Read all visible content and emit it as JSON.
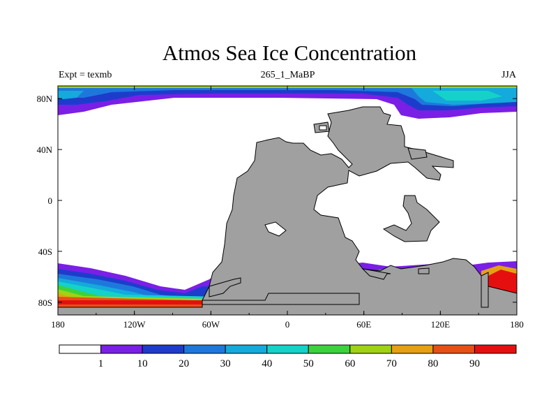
{
  "chart_data": {
    "type": "heatmap",
    "title": "Atmos Sea Ice Concentration",
    "left_string": "Expt = texmb",
    "center_string": "265_1_MaBP",
    "right_string": "JJA",
    "x_ticks": [
      "180",
      "120W",
      "60W",
      "0",
      "60E",
      "120E",
      "180"
    ],
    "y_ticks": [
      "80N",
      "40N",
      "0",
      "40S",
      "80S"
    ],
    "xlim": [
      -180,
      180
    ],
    "ylim": [
      -90,
      90
    ],
    "colorbar": {
      "labels": [
        "1",
        "10",
        "20",
        "30",
        "40",
        "50",
        "60",
        "70",
        "80",
        "90"
      ],
      "colors": [
        "#ffffff",
        "#7a1fe6",
        "#1e3ccc",
        "#1e78dc",
        "#14aadc",
        "#14d2c8",
        "#3cd23c",
        "#a0d214",
        "#e6a014",
        "#e65014",
        "#e60f0f"
      ]
    },
    "land_color": "#a0a0a0",
    "regions": [
      {
        "name": "arctic-ice",
        "description": "high concentration near north pole, decreasing toward 65N"
      },
      {
        "name": "antarctic-ice",
        "description": "concentric bands 50S-85S, highest near coast"
      }
    ]
  }
}
